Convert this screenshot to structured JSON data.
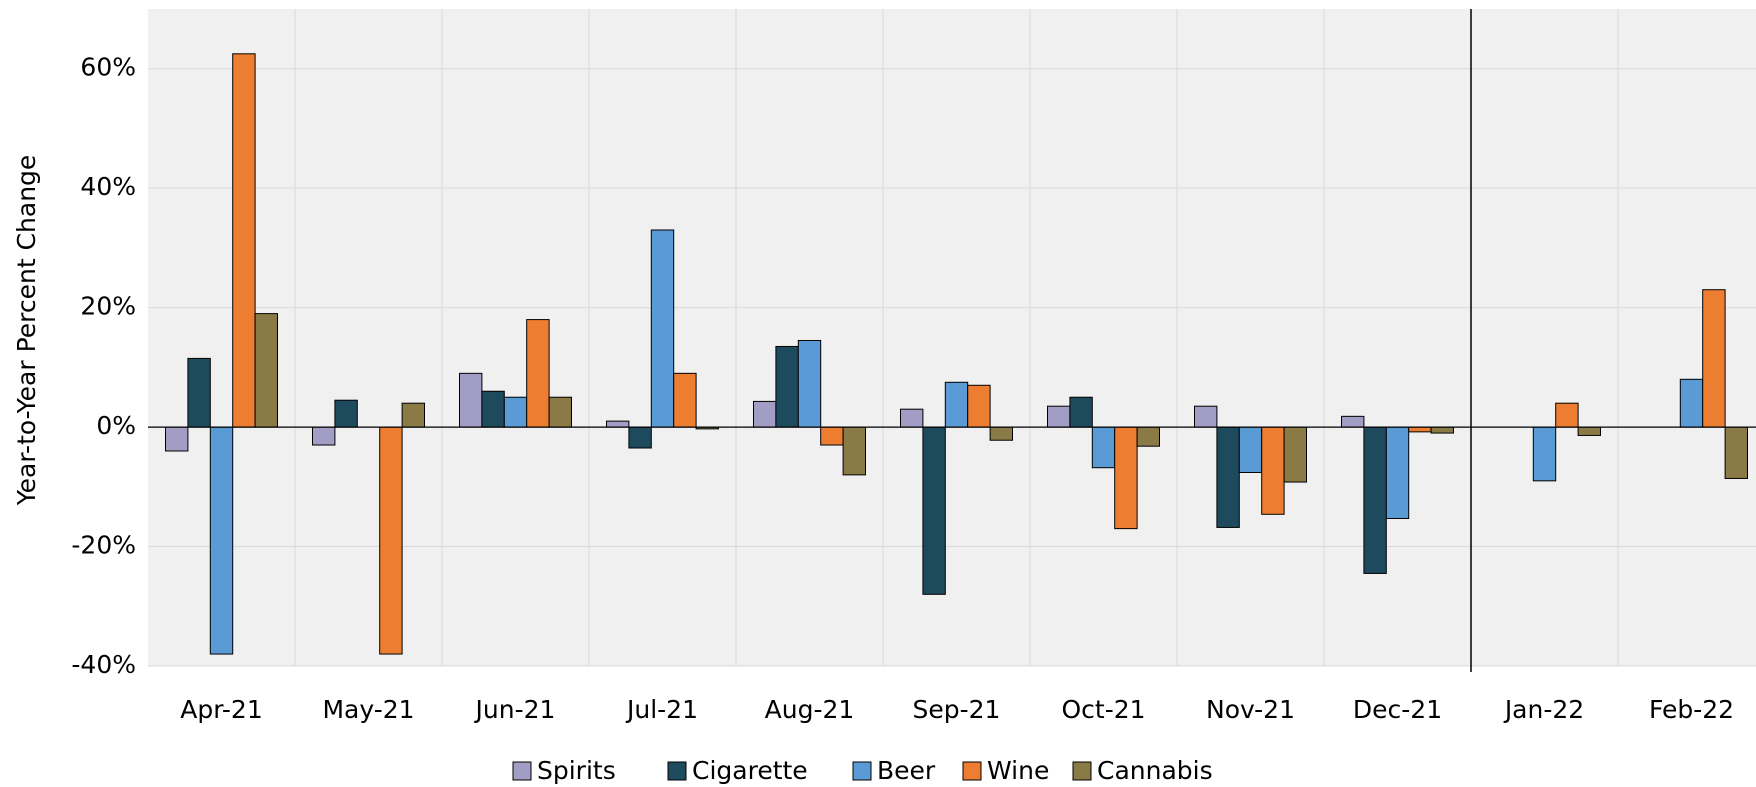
{
  "chart_data": {
    "type": "bar",
    "y_label": "Year-to-Year Percent Change",
    "categories": [
      "Apr-21",
      "May-21",
      "Jun-21",
      "Jul-21",
      "Aug-21",
      "Sep-21",
      "Oct-21",
      "Nov-21",
      "Dec-21",
      "Jan-22",
      "Feb-22"
    ],
    "series": [
      {
        "name": "Spirits",
        "color": "#a29dc4",
        "values": [
          -4,
          -3,
          9,
          1,
          4.3,
          3,
          3.5,
          3.5,
          1.8,
          null,
          null
        ]
      },
      {
        "name": "Cigarette",
        "color": "#1e4a5e",
        "values": [
          11.5,
          4.5,
          6,
          -3.5,
          13.5,
          -28,
          5,
          -16.8,
          -24.5,
          null,
          null
        ]
      },
      {
        "name": "Beer",
        "color": "#5b9bd5",
        "values": [
          -38,
          null,
          5,
          33,
          14.5,
          7.5,
          -6.8,
          -7.6,
          -15.3,
          -9,
          8
        ]
      },
      {
        "name": "Wine",
        "color": "#ed7d31",
        "values": [
          62.5,
          -38,
          18,
          9,
          -3,
          7,
          -17,
          -14.6,
          -0.8,
          4,
          23
        ]
      },
      {
        "name": "Cannabis",
        "color": "#8a7a45",
        "values": [
          19,
          4,
          5,
          -0.3,
          -8,
          -2.2,
          -3.2,
          -9.2,
          -1,
          -1.4,
          -8.6
        ]
      }
    ],
    "ylim": [
      -40,
      70
    ],
    "yticks": [
      {
        "value": -40,
        "label": "-40%"
      },
      {
        "value": -20,
        "label": "-20%"
      },
      {
        "value": 0,
        "label": "0%"
      },
      {
        "value": 20,
        "label": "20%"
      },
      {
        "value": 40,
        "label": "40%"
      },
      {
        "value": 60,
        "label": "60%"
      }
    ],
    "grid": true,
    "legend": "bottom"
  }
}
